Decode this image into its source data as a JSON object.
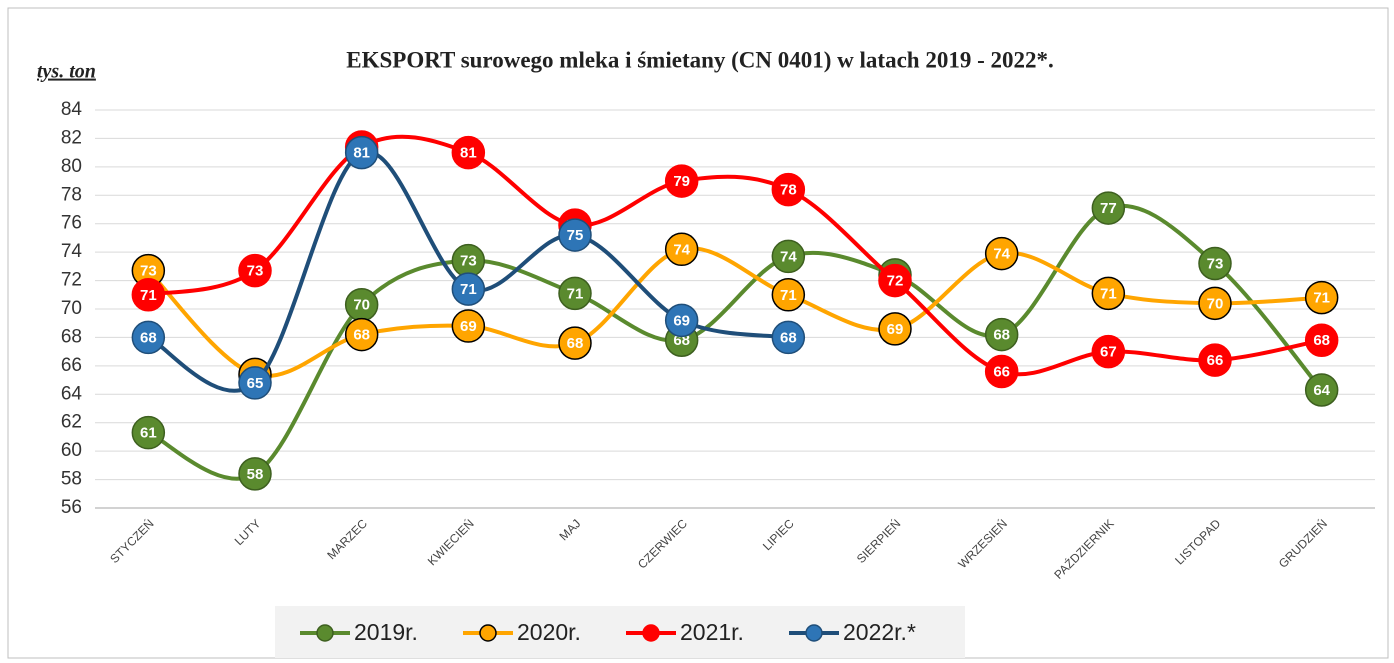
{
  "chart_data": {
    "type": "line",
    "title": "EKSPORT surowego mleka i śmietany (CN 0401) w latach 2019 - 2022*.",
    "y_label": "tys. ton",
    "categories": [
      "STYCZEŃ",
      "LUTY",
      "MARZEC",
      "KWIECIEŃ",
      "MAJ",
      "CZERWIEC",
      "LIPIEC",
      "SIERPIEŃ",
      "WRZESIEŃ",
      "PAŹDZIERNIK",
      "LISTOPAD",
      "GRUDZIEŃ"
    ],
    "series": [
      {
        "name": "2019r.",
        "color": "#5a8a2e",
        "values": [
          61.3,
          58.4,
          70.3,
          73.4,
          71.1,
          67.8,
          73.7,
          72.4,
          68.2,
          77.1,
          73.2,
          64.3
        ],
        "value_labels": [
          "61",
          "58",
          "70",
          "73",
          "71",
          "68",
          "74",
          "72",
          "68",
          "77",
          "73",
          "64"
        ]
      },
      {
        "name": "2020r.",
        "color": "#ffa500",
        "values": [
          72.7,
          65.4,
          68.2,
          68.8,
          67.6,
          74.2,
          71.0,
          68.6,
          73.9,
          71.1,
          70.4,
          70.8
        ],
        "value_labels": [
          "73",
          "65",
          "68",
          "69",
          "68",
          "74",
          "71",
          "69",
          "74",
          "71",
          "70",
          "71"
        ]
      },
      {
        "name": "2021r.",
        "color": "#ff0000",
        "values": [
          71.0,
          72.7,
          81.4,
          81.0,
          75.9,
          79.0,
          78.4,
          72.0,
          65.6,
          67.0,
          66.4,
          67.8
        ],
        "value_labels": [
          "71",
          "73",
          "81",
          "81",
          "76",
          "79",
          "78",
          "72",
          "66",
          "67",
          "66",
          "68"
        ]
      },
      {
        "name": "2022r.*",
        "color": "#1f4e79",
        "values": [
          68.0,
          64.8,
          81.0,
          71.4,
          75.2,
          69.2,
          68.0,
          null,
          null,
          null,
          null,
          null
        ],
        "value_labels": [
          "68",
          "65",
          "81",
          "71",
          "75",
          "69",
          "68",
          null,
          null,
          null,
          null,
          null
        ]
      }
    ],
    "ylim": [
      56,
      84
    ],
    "yticks": [
      56,
      58,
      60,
      62,
      64,
      66,
      68,
      70,
      72,
      74,
      76,
      78,
      80,
      82,
      84
    ],
    "grid": true,
    "legend": "bottom"
  }
}
